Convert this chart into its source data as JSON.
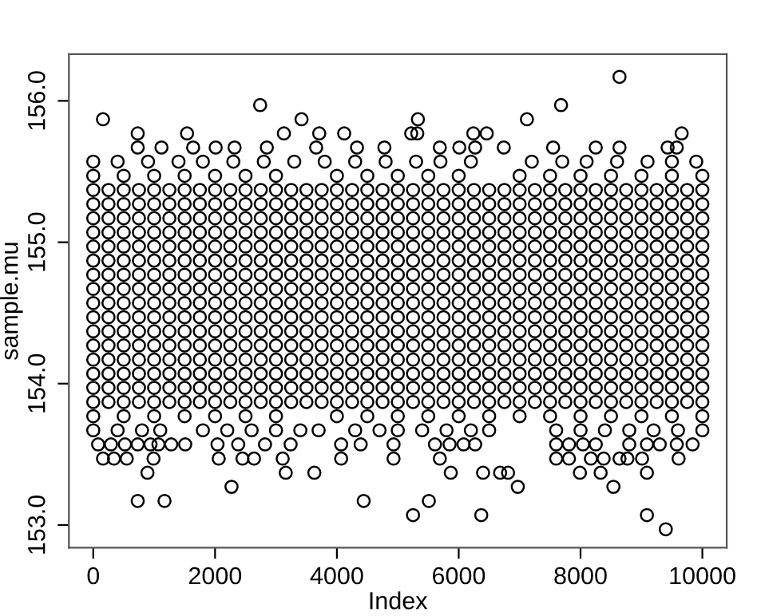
{
  "chart_data": {
    "type": "scatter",
    "xlabel": "Index",
    "ylabel": "sample.mu",
    "marker": "circle",
    "grid": false,
    "xlim": [
      -400,
      10400
    ],
    "ylim": [
      152.84,
      156.33
    ],
    "xticks": [
      0,
      2000,
      4000,
      6000,
      8000,
      10000
    ],
    "yticks": [
      {
        "value": 153,
        "label": "153.0"
      },
      {
        "value": 154,
        "label": "154.0"
      },
      {
        "value": 155,
        "label": "155.0"
      },
      {
        "value": 156,
        "label": "156.0"
      }
    ],
    "x": [
      0,
      250,
      500,
      750,
      1000,
      1250,
      1500,
      1750,
      2000,
      2250,
      2500,
      2750,
      3000,
      3250,
      3500,
      3750,
      4000,
      4250,
      4500,
      4750,
      5000,
      5250,
      5500,
      5750,
      6000,
      6250,
      6500,
      6750,
      7000,
      7250,
      7500,
      7750,
      8000,
      8250,
      8500,
      8750,
      9000,
      9250,
      9500,
      9750,
      10000
    ],
    "series": [
      {
        "color": "#000000",
        "values": [
          153.87,
          153.87,
          153.87,
          153.87,
          153.87,
          153.87,
          153.87,
          153.87,
          153.87,
          153.87,
          153.87,
          153.87,
          153.87,
          153.87,
          153.87,
          153.87,
          153.87,
          153.87,
          153.87,
          153.87,
          153.87,
          153.87,
          153.87,
          153.87,
          153.87,
          153.87,
          153.87,
          153.87,
          153.87,
          153.87,
          153.87,
          153.87,
          153.87,
          153.87,
          153.87,
          153.87,
          153.87,
          153.87,
          153.87,
          153.87,
          153.87
        ]
      },
      {
        "color": "#000000",
        "values": [
          153.97,
          153.97,
          153.97,
          153.97,
          153.97,
          153.97,
          153.97,
          153.97,
          153.97,
          153.97,
          153.97,
          153.97,
          153.97,
          153.97,
          153.97,
          153.97,
          153.97,
          153.97,
          153.97,
          153.97,
          153.97,
          153.97,
          153.97,
          153.97,
          153.97,
          153.97,
          153.97,
          153.97,
          153.97,
          153.97,
          153.97,
          153.97,
          153.97,
          153.97,
          153.97,
          153.97,
          153.97,
          153.97,
          153.97,
          153.97,
          153.97
        ]
      },
      {
        "color": "#000000",
        "values": [
          154.07,
          154.07,
          154.07,
          154.07,
          154.07,
          154.07,
          154.07,
          154.07,
          154.07,
          154.07,
          154.07,
          154.07,
          154.07,
          154.07,
          154.07,
          154.07,
          154.07,
          154.07,
          154.07,
          154.07,
          154.07,
          154.07,
          154.07,
          154.07,
          154.07,
          154.07,
          154.07,
          154.07,
          154.07,
          154.07,
          154.07,
          154.07,
          154.07,
          154.07,
          154.07,
          154.07,
          154.07,
          154.07,
          154.07,
          154.07,
          154.07
        ]
      },
      {
        "color": "#000000",
        "values": [
          154.17,
          154.17,
          154.17,
          154.17,
          154.17,
          154.17,
          154.17,
          154.17,
          154.17,
          154.17,
          154.17,
          154.17,
          154.17,
          154.17,
          154.17,
          154.17,
          154.17,
          154.17,
          154.17,
          154.17,
          154.17,
          154.17,
          154.17,
          154.17,
          154.17,
          154.17,
          154.17,
          154.17,
          154.17,
          154.17,
          154.17,
          154.17,
          154.17,
          154.17,
          154.17,
          154.17,
          154.17,
          154.17,
          154.17,
          154.17,
          154.17
        ]
      },
      {
        "color": "#000000",
        "values": [
          154.27,
          154.27,
          154.27,
          154.27,
          154.27,
          154.27,
          154.27,
          154.27,
          154.27,
          154.27,
          154.27,
          154.27,
          154.27,
          154.27,
          154.27,
          154.27,
          154.27,
          154.27,
          154.27,
          154.27,
          154.27,
          154.27,
          154.27,
          154.27,
          154.27,
          154.27,
          154.27,
          154.27,
          154.27,
          154.27,
          154.27,
          154.27,
          154.27,
          154.27,
          154.27,
          154.27,
          154.27,
          154.27,
          154.27,
          154.27,
          154.27
        ]
      },
      {
        "color": "#000000",
        "values": [
          154.37,
          154.37,
          154.37,
          154.37,
          154.37,
          154.37,
          154.37,
          154.37,
          154.37,
          154.37,
          154.37,
          154.37,
          154.37,
          154.37,
          154.37,
          154.37,
          154.37,
          154.37,
          154.37,
          154.37,
          154.37,
          154.37,
          154.37,
          154.37,
          154.37,
          154.37,
          154.37,
          154.37,
          154.37,
          154.37,
          154.37,
          154.37,
          154.37,
          154.37,
          154.37,
          154.37,
          154.37,
          154.37,
          154.37,
          154.37,
          154.37
        ]
      },
      {
        "color": "#000000",
        "values": [
          154.47,
          154.47,
          154.47,
          154.47,
          154.47,
          154.47,
          154.47,
          154.47,
          154.47,
          154.47,
          154.47,
          154.47,
          154.47,
          154.47,
          154.47,
          154.47,
          154.47,
          154.47,
          154.47,
          154.47,
          154.47,
          154.47,
          154.47,
          154.47,
          154.47,
          154.47,
          154.47,
          154.47,
          154.47,
          154.47,
          154.47,
          154.47,
          154.47,
          154.47,
          154.47,
          154.47,
          154.47,
          154.47,
          154.47,
          154.47,
          154.47
        ]
      },
      {
        "color": "#000000",
        "values": [
          154.57,
          154.57,
          154.57,
          154.57,
          154.57,
          154.57,
          154.57,
          154.57,
          154.57,
          154.57,
          154.57,
          154.57,
          154.57,
          154.57,
          154.57,
          154.57,
          154.57,
          154.57,
          154.57,
          154.57,
          154.57,
          154.57,
          154.57,
          154.57,
          154.57,
          154.57,
          154.57,
          154.57,
          154.57,
          154.57,
          154.57,
          154.57,
          154.57,
          154.57,
          154.57,
          154.57,
          154.57,
          154.57,
          154.57,
          154.57,
          154.57
        ]
      },
      {
        "color": "#000000",
        "values": [
          154.67,
          154.67,
          154.67,
          154.67,
          154.67,
          154.67,
          154.67,
          154.67,
          154.67,
          154.67,
          154.67,
          154.67,
          154.67,
          154.67,
          154.67,
          154.67,
          154.67,
          154.67,
          154.67,
          154.67,
          154.67,
          154.67,
          154.67,
          154.67,
          154.67,
          154.67,
          154.67,
          154.67,
          154.67,
          154.67,
          154.67,
          154.67,
          154.67,
          154.67,
          154.67,
          154.67,
          154.67,
          154.67,
          154.67,
          154.67,
          154.67
        ]
      },
      {
        "color": "#000000",
        "values": [
          154.77,
          154.77,
          154.77,
          154.77,
          154.77,
          154.77,
          154.77,
          154.77,
          154.77,
          154.77,
          154.77,
          154.77,
          154.77,
          154.77,
          154.77,
          154.77,
          154.77,
          154.77,
          154.77,
          154.77,
          154.77,
          154.77,
          154.77,
          154.77,
          154.77,
          154.77,
          154.77,
          154.77,
          154.77,
          154.77,
          154.77,
          154.77,
          154.77,
          154.77,
          154.77,
          154.77,
          154.77,
          154.77,
          154.77,
          154.77,
          154.77
        ]
      },
      {
        "color": "#000000",
        "values": [
          154.87,
          154.87,
          154.87,
          154.87,
          154.87,
          154.87,
          154.87,
          154.87,
          154.87,
          154.87,
          154.87,
          154.87,
          154.87,
          154.87,
          154.87,
          154.87,
          154.87,
          154.87,
          154.87,
          154.87,
          154.87,
          154.87,
          154.87,
          154.87,
          154.87,
          154.87,
          154.87,
          154.87,
          154.87,
          154.87,
          154.87,
          154.87,
          154.87,
          154.87,
          154.87,
          154.87,
          154.87,
          154.87,
          154.87,
          154.87,
          154.87
        ]
      },
      {
        "color": "#000000",
        "values": [
          154.97,
          154.97,
          154.97,
          154.97,
          154.97,
          154.97,
          154.97,
          154.97,
          154.97,
          154.97,
          154.97,
          154.97,
          154.97,
          154.97,
          154.97,
          154.97,
          154.97,
          154.97,
          154.97,
          154.97,
          154.97,
          154.97,
          154.97,
          154.97,
          154.97,
          154.97,
          154.97,
          154.97,
          154.97,
          154.97,
          154.97,
          154.97,
          154.97,
          154.97,
          154.97,
          154.97,
          154.97,
          154.97,
          154.97,
          154.97,
          154.97
        ]
      },
      {
        "color": "#000000",
        "values": [
          155.07,
          155.07,
          155.07,
          155.07,
          155.07,
          155.07,
          155.07,
          155.07,
          155.07,
          155.07,
          155.07,
          155.07,
          155.07,
          155.07,
          155.07,
          155.07,
          155.07,
          155.07,
          155.07,
          155.07,
          155.07,
          155.07,
          155.07,
          155.07,
          155.07,
          155.07,
          155.07,
          155.07,
          155.07,
          155.07,
          155.07,
          155.07,
          155.07,
          155.07,
          155.07,
          155.07,
          155.07,
          155.07,
          155.07,
          155.07,
          155.07
        ]
      },
      {
        "color": "#000000",
        "values": [
          155.17,
          155.17,
          155.17,
          155.17,
          155.17,
          155.17,
          155.17,
          155.17,
          155.17,
          155.17,
          155.17,
          155.17,
          155.17,
          155.17,
          155.17,
          155.17,
          155.17,
          155.17,
          155.17,
          155.17,
          155.17,
          155.17,
          155.17,
          155.17,
          155.17,
          155.17,
          155.17,
          155.17,
          155.17,
          155.17,
          155.17,
          155.17,
          155.17,
          155.17,
          155.17,
          155.17,
          155.17,
          155.17,
          155.17,
          155.17,
          155.17
        ]
      },
      {
        "color": "#000000",
        "values": [
          155.27,
          155.27,
          155.27,
          155.27,
          155.27,
          155.27,
          155.27,
          155.27,
          155.27,
          155.27,
          155.27,
          155.27,
          155.27,
          155.27,
          155.27,
          155.27,
          155.27,
          155.27,
          155.27,
          155.27,
          155.27,
          155.27,
          155.27,
          155.27,
          155.27,
          155.27,
          155.27,
          155.27,
          155.27,
          155.27,
          155.27,
          155.27,
          155.27,
          155.27,
          155.27,
          155.27,
          155.27,
          155.27,
          155.27,
          155.27,
          155.27
        ]
      },
      {
        "color": "#000000",
        "values": [
          155.37,
          155.37,
          155.37,
          155.37,
          155.37,
          155.37,
          155.37,
          155.37,
          155.37,
          155.37,
          155.37,
          155.37,
          155.37,
          155.37,
          155.37,
          155.37,
          155.37,
          155.37,
          155.37,
          155.37,
          155.37,
          155.37,
          155.37,
          155.37,
          155.37,
          155.37,
          155.37,
          155.37,
          155.37,
          155.37,
          155.37,
          155.37,
          155.37,
          155.37,
          155.37,
          155.37,
          155.37,
          155.37,
          155.37,
          155.37,
          155.37
        ]
      },
      {
        "color": "#000000",
        "x": [
          0,
          500,
          1000,
          1500,
          2000,
          2500,
          3000,
          4000,
          4500,
          5000,
          5500,
          6000,
          7000,
          7500,
          8000,
          8500,
          9000,
          9500,
          10000
        ],
        "values": [
          155.47,
          155.47,
          155.47,
          155.47,
          155.47,
          155.47,
          155.47,
          155.47,
          155.47,
          155.47,
          155.47,
          155.47,
          155.47,
          155.47,
          155.47,
          155.47,
          155.47,
          155.47,
          155.47
        ]
      },
      {
        "color": "#000000",
        "x": [
          0,
          400,
          900,
          1400,
          1800,
          2300,
          2800,
          3300,
          3800,
          4300,
          4800,
          5300,
          5700,
          6200,
          7200,
          7700,
          8100,
          8600,
          9100,
          9500,
          9900
        ],
        "values": [
          155.57,
          155.57,
          155.57,
          155.57,
          155.57,
          155.57,
          155.57,
          155.57,
          155.57,
          155.57,
          155.57,
          155.57,
          155.57,
          155.57,
          155.57,
          155.57,
          155.57,
          155.57,
          155.57,
          155.57,
          155.57
        ]
      },
      {
        "color": "#000000",
        "x": [
          730,
          1120,
          1640,
          2010,
          2320,
          2850,
          3660,
          4330,
          4780,
          5690,
          6010,
          6270,
          6740,
          7550,
          8250,
          8640,
          9430,
          9580
        ],
        "values": [
          155.67,
          155.67,
          155.67,
          155.67,
          155.67,
          155.67,
          155.67,
          155.67,
          155.67,
          155.67,
          155.67,
          155.67,
          155.67,
          155.67,
          155.67,
          155.67,
          155.67,
          155.67
        ]
      },
      {
        "color": "#000000",
        "x": [
          730,
          1540,
          3130,
          3710,
          4120,
          5220,
          5320,
          6240,
          6460,
          9660
        ],
        "values": [
          155.77,
          155.77,
          155.77,
          155.77,
          155.77,
          155.77,
          155.77,
          155.77,
          155.77,
          155.77
        ]
      },
      {
        "color": "#000000",
        "x": [
          160,
          3420,
          5330,
          7120
        ],
        "values": [
          155.87,
          155.87,
          155.87,
          155.87
        ]
      },
      {
        "color": "#000000",
        "x": [
          2740,
          7680
        ],
        "values": [
          155.97,
          155.97
        ]
      },
      {
        "color": "#000000",
        "x": [
          8640
        ],
        "values": [
          156.17
        ]
      },
      {
        "color": "#000000",
        "x": [
          0,
          500,
          1000,
          1500,
          2000,
          2500,
          3000,
          4000,
          4500,
          5000,
          5500,
          6000,
          6500,
          7000,
          7500,
          8000,
          8500,
          9000,
          9500,
          10000
        ],
        "values": [
          153.77,
          153.77,
          153.77,
          153.77,
          153.77,
          153.77,
          153.77,
          153.77,
          153.77,
          153.77,
          153.77,
          153.77,
          153.77,
          153.77,
          153.77,
          153.77,
          153.77,
          153.77,
          153.77,
          153.77
        ]
      },
      {
        "color": "#000000",
        "x": [
          0,
          400,
          800,
          1100,
          1800,
          2200,
          2600,
          3000,
          3400,
          3700,
          4300,
          4700,
          5000,
          5400,
          5800,
          6200,
          6500,
          7600,
          8000,
          8400,
          8800,
          9200,
          9600,
          10000
        ],
        "values": [
          153.67,
          153.67,
          153.67,
          153.67,
          153.67,
          153.67,
          153.67,
          153.67,
          153.67,
          153.67,
          153.67,
          153.67,
          153.67,
          153.67,
          153.67,
          153.67,
          153.67,
          153.67,
          153.67,
          153.67,
          153.67,
          153.67,
          153.67,
          153.67
        ]
      },
      {
        "color": "#000000",
        "x": [
          80,
          290,
          520,
          730,
          940,
          1070,
          1280,
          1510,
          2040,
          2380,
          2820,
          3240,
          4070,
          4390,
          4930,
          5610,
          5850,
          6080,
          6270,
          7600,
          7810,
          8040,
          8250,
          8800,
          9090,
          9300,
          9580,
          9840
        ],
        "values": [
          153.57,
          153.57,
          153.57,
          153.57,
          153.57,
          153.57,
          153.57,
          153.57,
          153.57,
          153.57,
          153.57,
          153.57,
          153.57,
          153.57,
          153.57,
          153.57,
          153.57,
          153.57,
          153.57,
          153.57,
          153.57,
          153.57,
          153.57,
          153.57,
          153.57,
          153.57,
          153.57,
          153.57
        ]
      },
      {
        "color": "#000000",
        "x": [
          160,
          340,
          550,
          990,
          2060,
          2450,
          2640,
          3110,
          4070,
          4930,
          5690,
          7600,
          7810,
          8170,
          8380,
          8640,
          8770,
          9010,
          9610
        ],
        "values": [
          153.47,
          153.47,
          153.47,
          153.47,
          153.47,
          153.47,
          153.47,
          153.47,
          153.47,
          153.47,
          153.47,
          153.47,
          153.47,
          153.47,
          153.47,
          153.47,
          153.47,
          153.47,
          153.47
        ]
      },
      {
        "color": "#000000",
        "x": [
          890,
          3160,
          3630,
          5870,
          6400,
          6680,
          6810,
          7990,
          8330,
          9090
        ],
        "values": [
          153.37,
          153.37,
          153.37,
          153.37,
          153.37,
          153.37,
          153.37,
          153.37,
          153.37,
          153.37
        ]
      },
      {
        "color": "#000000",
        "x": [
          2270,
          6970,
          8540
        ],
        "values": [
          153.27,
          153.27,
          153.27
        ]
      },
      {
        "color": "#000000",
        "x": [
          730,
          1170,
          4440,
          5510
        ],
        "values": [
          153.17,
          153.17,
          153.17,
          153.17
        ]
      },
      {
        "color": "#000000",
        "x": [
          5250,
          6370,
          9090
        ],
        "values": [
          153.07,
          153.07,
          153.07
        ]
      },
      {
        "color": "#000000",
        "x": [
          9400
        ],
        "values": [
          152.97
        ]
      }
    ]
  }
}
